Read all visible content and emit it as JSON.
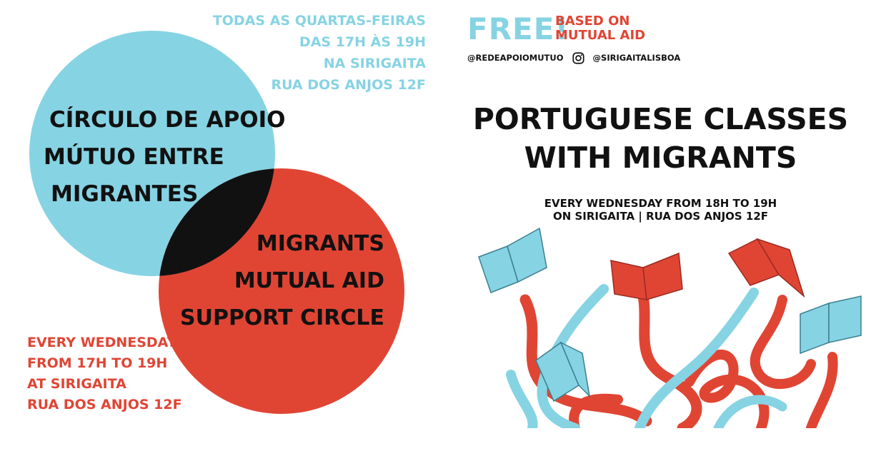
{
  "left_panel": {
    "schedule_pt": [
      "TODAS AS QUARTAS-FEIRAS",
      "DAS 17H ÀS 19H",
      "NA SIRIGAITA",
      "RUA DOS ANJOS 12F"
    ],
    "title_pt": [
      "CÍRCULO DE APOIO",
      "MÚTUO ENTRE",
      "MIGRANTES"
    ],
    "title_en": [
      "MIGRANTS",
      "MUTUAL AID",
      "SUPPORT CIRCLE"
    ],
    "schedule_en": [
      "EVERY WEDNESDAY",
      "FROM 17H TO 19H",
      "AT SIRIGAITA",
      "RUA DOS ANJOS 12F"
    ]
  },
  "right_panel": {
    "free_label": "FREE!",
    "based_on": [
      "BASED ON",
      "MUTUAL AID"
    ],
    "handle_left": "@REDEAPOIOMUTUO",
    "handle_right": "@SIRIGAITALISBOA",
    "instagram_icon": "instagram-icon",
    "title": [
      "PORTUGUESE CLASSES",
      "WITH MIGRANTS"
    ],
    "schedule": [
      "EVERY WEDNESDAY FROM 18H TO 19H",
      "ON SIRIGAITA | RUA DOS ANJOS 12F"
    ]
  },
  "colors": {
    "blue": "#86d3e3",
    "red": "#e04534",
    "black": "#111111",
    "white": "#ffffff"
  }
}
